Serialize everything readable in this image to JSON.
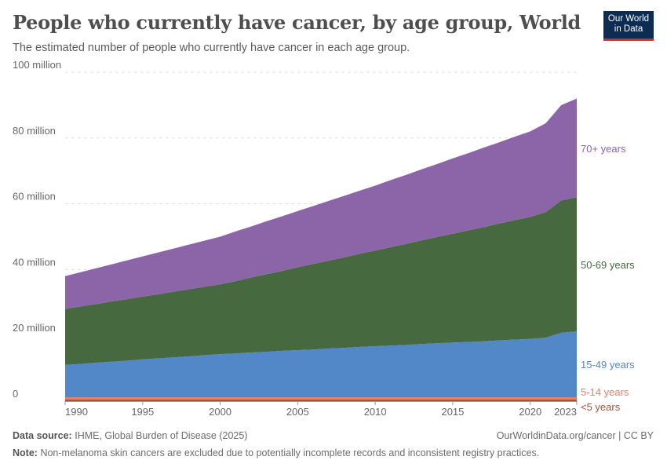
{
  "header": {
    "title": "People who currently have cancer, by age group, World",
    "subtitle": "The estimated number of people who currently have cancer in each age group.",
    "logo": "Our World in Data"
  },
  "footer": {
    "source_label": "Data source:",
    "source": "IHME, Global Burden of Disease (2025)",
    "url": "OurWorldinData.org/cancer | CC BY",
    "note_label": "Note:",
    "note": "Non-melanoma skin cancers are excluded due to potentially incomplete records and inconsistent registry practices."
  },
  "chart_data": {
    "type": "area",
    "stacked": true,
    "title": "People who currently have cancer, by age group, World",
    "xlim": [
      1990,
      2023
    ],
    "ylim": [
      0,
      100000000
    ],
    "grid": "horizontal dashed",
    "y_ticks": [
      {
        "v": 0,
        "label": "0"
      },
      {
        "v": 20000000,
        "label": "20 million"
      },
      {
        "v": 40000000,
        "label": "40 million"
      },
      {
        "v": 60000000,
        "label": "60 million"
      },
      {
        "v": 80000000,
        "label": "80 million"
      },
      {
        "v": 100000000,
        "label": "100 million"
      }
    ],
    "x_ticks": [
      1990,
      1995,
      2000,
      2005,
      2010,
      2015,
      2020,
      2023
    ],
    "x": [
      1990,
      1991,
      1992,
      1993,
      1994,
      1995,
      1996,
      1997,
      1998,
      1999,
      2000,
      2001,
      2002,
      2003,
      2004,
      2005,
      2006,
      2007,
      2008,
      2009,
      2010,
      2011,
      2012,
      2013,
      2014,
      2015,
      2016,
      2017,
      2018,
      2019,
      2020,
      2021,
      2022,
      2023
    ],
    "unit": "million",
    "series": [
      {
        "name": "<5 years",
        "color": "#a2553a",
        "values": [
          0.5,
          0.5,
          0.5,
          0.5,
          0.5,
          0.5,
          0.5,
          0.5,
          0.5,
          0.5,
          0.5,
          0.5,
          0.5,
          0.5,
          0.5,
          0.5,
          0.5,
          0.5,
          0.5,
          0.5,
          0.5,
          0.5,
          0.5,
          0.5,
          0.5,
          0.5,
          0.5,
          0.5,
          0.5,
          0.5,
          0.5,
          0.5,
          0.5,
          0.5
        ]
      },
      {
        "name": "5-14 years",
        "color": "#e57e6a",
        "values": [
          0.7,
          0.7,
          0.7,
          0.7,
          0.7,
          0.7,
          0.7,
          0.7,
          0.7,
          0.7,
          0.7,
          0.7,
          0.7,
          0.7,
          0.7,
          0.7,
          0.7,
          0.7,
          0.7,
          0.7,
          0.7,
          0.7,
          0.7,
          0.7,
          0.7,
          0.7,
          0.7,
          0.7,
          0.7,
          0.7,
          0.7,
          0.7,
          0.7,
          0.7
        ]
      },
      {
        "name": "15-49 years",
        "color": "#5287c8",
        "values": [
          9.8,
          10.1,
          10.5,
          10.8,
          11.1,
          11.5,
          11.8,
          12.1,
          12.4,
          12.8,
          13.1,
          13.3,
          13.6,
          13.8,
          14.1,
          14.3,
          14.5,
          14.8,
          15,
          15.3,
          15.5,
          15.7,
          15.9,
          16.2,
          16.4,
          16.6,
          16.8,
          17,
          17.3,
          17.5,
          17.7,
          18.1,
          19.6,
          20
        ]
      },
      {
        "name": "50-69 years",
        "color": "#46693f",
        "values": [
          17,
          17.5,
          17.8,
          18.3,
          18.7,
          19.1,
          19.5,
          20,
          20.4,
          20.8,
          21.2,
          22,
          22.8,
          23.6,
          24.3,
          25.2,
          26,
          26.7,
          27.5,
          28.3,
          29.1,
          29.9,
          30.7,
          31.5,
          32.3,
          33.1,
          33.9,
          34.7,
          35.5,
          36.3,
          37.1,
          38.2,
          40.2,
          40.8
        ]
      },
      {
        "name": "70+ years",
        "color": "#8c65a8",
        "values": [
          10,
          10.4,
          10.9,
          11.3,
          11.8,
          12.2,
          12.7,
          13.1,
          13.6,
          14,
          14.5,
          15.1,
          15.5,
          16.1,
          16.6,
          17.1,
          17.6,
          18.2,
          18.7,
          19.2,
          19.7,
          20.4,
          21,
          21.6,
          22.2,
          22.9,
          23.5,
          24.2,
          24.7,
          25.4,
          26,
          27,
          29,
          30
        ]
      }
    ]
  }
}
